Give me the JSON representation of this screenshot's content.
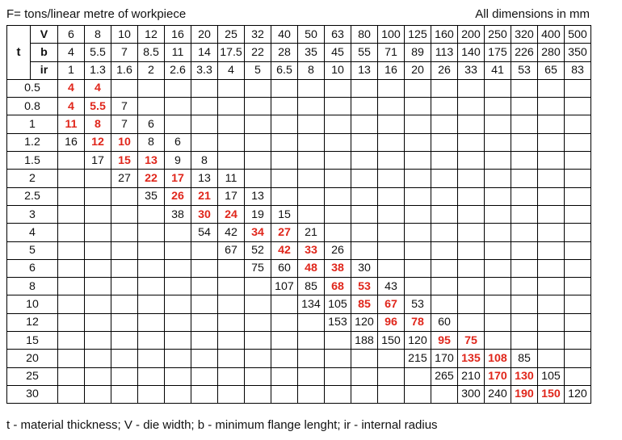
{
  "title_left": "F= tons/linear metre of workpiece",
  "title_right": "All dimensions in mm",
  "footer": "t - material thickness; V - die width; b - minimum flange lenght; ir - internal radius",
  "labels": {
    "t": "t",
    "V": "V",
    "b": "b",
    "ir": "ir"
  },
  "V": [
    "6",
    "8",
    "10",
    "12",
    "16",
    "20",
    "25",
    "32",
    "40",
    "50",
    "63",
    "80",
    "100",
    "125",
    "160",
    "200",
    "250",
    "320",
    "400",
    "500"
  ],
  "b": [
    "4",
    "5.5",
    "7",
    "8.5",
    "11",
    "14",
    "17.5",
    "22",
    "28",
    "35",
    "45",
    "55",
    "71",
    "89",
    "113",
    "140",
    "175",
    "226",
    "280",
    "350"
  ],
  "ir": [
    "1",
    "1.3",
    "1.6",
    "2",
    "2.6",
    "3.3",
    "4",
    "5",
    "6.5",
    "8",
    "10",
    "13",
    "16",
    "20",
    "26",
    "33",
    "41",
    "53",
    "65",
    "83"
  ],
  "rows": [
    {
      "t": "0.5",
      "cells": [
        {
          "c": 0,
          "v": "4",
          "red": true
        },
        {
          "c": 1,
          "v": "4",
          "red": true
        }
      ]
    },
    {
      "t": "0.8",
      "cells": [
        {
          "c": 0,
          "v": "4",
          "red": true
        },
        {
          "c": 1,
          "v": "5.5",
          "red": true
        },
        {
          "c": 2,
          "v": "7"
        }
      ]
    },
    {
      "t": "1",
      "cells": [
        {
          "c": 0,
          "v": "11",
          "red": true
        },
        {
          "c": 1,
          "v": "8",
          "red": true
        },
        {
          "c": 2,
          "v": "7"
        },
        {
          "c": 3,
          "v": "6"
        }
      ]
    },
    {
      "t": "1.2",
      "cells": [
        {
          "c": 0,
          "v": "16"
        },
        {
          "c": 1,
          "v": "12",
          "red": true
        },
        {
          "c": 2,
          "v": "10",
          "red": true
        },
        {
          "c": 3,
          "v": "8"
        },
        {
          "c": 4,
          "v": "6"
        }
      ]
    },
    {
      "t": "1.5",
      "cells": [
        {
          "c": 1,
          "v": "17"
        },
        {
          "c": 2,
          "v": "15",
          "red": true
        },
        {
          "c": 3,
          "v": "13",
          "red": true
        },
        {
          "c": 4,
          "v": "9"
        },
        {
          "c": 5,
          "v": "8"
        }
      ]
    },
    {
      "t": "2",
      "cells": [
        {
          "c": 2,
          "v": "27"
        },
        {
          "c": 3,
          "v": "22",
          "red": true
        },
        {
          "c": 4,
          "v": "17",
          "red": true
        },
        {
          "c": 5,
          "v": "13"
        },
        {
          "c": 6,
          "v": "11"
        }
      ]
    },
    {
      "t": "2.5",
      "cells": [
        {
          "c": 3,
          "v": "35"
        },
        {
          "c": 4,
          "v": "26",
          "red": true
        },
        {
          "c": 5,
          "v": "21",
          "red": true
        },
        {
          "c": 6,
          "v": "17"
        },
        {
          "c": 7,
          "v": "13"
        }
      ]
    },
    {
      "t": "3",
      "cells": [
        {
          "c": 4,
          "v": "38"
        },
        {
          "c": 5,
          "v": "30",
          "red": true
        },
        {
          "c": 6,
          "v": "24",
          "red": true
        },
        {
          "c": 7,
          "v": "19"
        },
        {
          "c": 8,
          "v": "15"
        }
      ]
    },
    {
      "t": "4",
      "cells": [
        {
          "c": 5,
          "v": "54"
        },
        {
          "c": 6,
          "v": "42"
        },
        {
          "c": 7,
          "v": "34",
          "red": true
        },
        {
          "c": 8,
          "v": "27",
          "red": true
        },
        {
          "c": 9,
          "v": "21"
        }
      ]
    },
    {
      "t": "5",
      "cells": [
        {
          "c": 6,
          "v": "67"
        },
        {
          "c": 7,
          "v": "52"
        },
        {
          "c": 8,
          "v": "42",
          "red": true
        },
        {
          "c": 9,
          "v": "33",
          "red": true
        },
        {
          "c": 10,
          "v": "26"
        }
      ]
    },
    {
      "t": "6",
      "cells": [
        {
          "c": 7,
          "v": "75"
        },
        {
          "c": 8,
          "v": "60"
        },
        {
          "c": 9,
          "v": "48",
          "red": true
        },
        {
          "c": 10,
          "v": "38",
          "red": true
        },
        {
          "c": 11,
          "v": "30"
        }
      ]
    },
    {
      "t": "8",
      "cells": [
        {
          "c": 8,
          "v": "107"
        },
        {
          "c": 9,
          "v": "85"
        },
        {
          "c": 10,
          "v": "68",
          "red": true
        },
        {
          "c": 11,
          "v": "53",
          "red": true
        },
        {
          "c": 12,
          "v": "43"
        }
      ]
    },
    {
      "t": "10",
      "cells": [
        {
          "c": 9,
          "v": "134"
        },
        {
          "c": 10,
          "v": "105"
        },
        {
          "c": 11,
          "v": "85",
          "red": true
        },
        {
          "c": 12,
          "v": "67",
          "red": true
        },
        {
          "c": 13,
          "v": "53"
        }
      ]
    },
    {
      "t": "12",
      "cells": [
        {
          "c": 10,
          "v": "153"
        },
        {
          "c": 11,
          "v": "120"
        },
        {
          "c": 12,
          "v": "96",
          "red": true
        },
        {
          "c": 13,
          "v": "78",
          "red": true
        },
        {
          "c": 14,
          "v": "60"
        }
      ]
    },
    {
      "t": "15",
      "cells": [
        {
          "c": 11,
          "v": "188"
        },
        {
          "c": 12,
          "v": "150"
        },
        {
          "c": 13,
          "v": "120"
        },
        {
          "c": 14,
          "v": "95",
          "red": true
        },
        {
          "c": 15,
          "v": "75",
          "red": true
        }
      ]
    },
    {
      "t": "20",
      "cells": [
        {
          "c": 13,
          "v": "215"
        },
        {
          "c": 14,
          "v": "170"
        },
        {
          "c": 15,
          "v": "135",
          "red": true
        },
        {
          "c": 16,
          "v": "108",
          "red": true
        },
        {
          "c": 17,
          "v": "85"
        }
      ]
    },
    {
      "t": "25",
      "cells": [
        {
          "c": 14,
          "v": "265"
        },
        {
          "c": 15,
          "v": "210"
        },
        {
          "c": 16,
          "v": "170",
          "red": true
        },
        {
          "c": 17,
          "v": "130",
          "red": true
        },
        {
          "c": 18,
          "v": "105"
        }
      ]
    },
    {
      "t": "30",
      "cells": [
        {
          "c": 15,
          "v": "300"
        },
        {
          "c": 16,
          "v": "240"
        },
        {
          "c": 17,
          "v": "190",
          "red": true
        },
        {
          "c": 18,
          "v": "150",
          "red": true
        },
        {
          "c": 19,
          "v": "120"
        }
      ]
    }
  ],
  "colors": {
    "highlight": "#e0261b",
    "text": "#111111",
    "border": "#000000"
  }
}
